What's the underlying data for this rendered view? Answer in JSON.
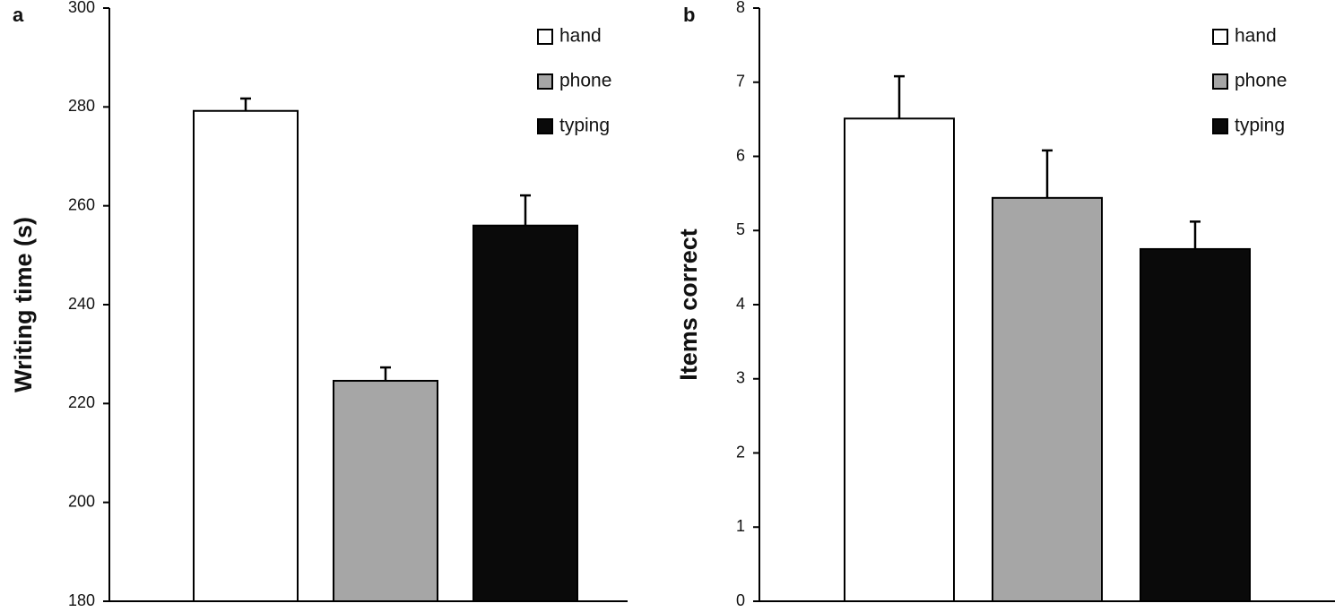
{
  "chart_data": [
    {
      "type": "bar",
      "panel_label": "a",
      "ylabel": "Writing time (s)",
      "ylim": [
        180,
        300
      ],
      "yticks": [
        180,
        200,
        220,
        240,
        260,
        280,
        300
      ],
      "series": [
        {
          "name": "hand",
          "color": "#ffffff",
          "values": [
            279.2
          ],
          "errors": [
            2.5
          ]
        },
        {
          "name": "phone",
          "color": "#a6a6a6",
          "values": [
            224.6
          ],
          "errors": [
            2.7
          ]
        },
        {
          "name": "typing",
          "color": "#0a0a0a",
          "values": [
            256.0
          ],
          "errors": [
            6.1
          ]
        }
      ]
    },
    {
      "type": "bar",
      "panel_label": "b",
      "ylabel": "Items correct",
      "ylim": [
        0,
        8
      ],
      "yticks": [
        0,
        1,
        2,
        3,
        4,
        5,
        6,
        7,
        8
      ],
      "series": [
        {
          "name": "hand",
          "color": "#ffffff",
          "values": [
            6.51
          ],
          "errors": [
            0.57
          ]
        },
        {
          "name": "phone",
          "color": "#a6a6a6",
          "values": [
            5.44
          ],
          "errors": [
            0.64
          ]
        },
        {
          "name": "typing",
          "color": "#0a0a0a",
          "values": [
            4.75
          ],
          "errors": [
            0.37
          ]
        }
      ]
    }
  ]
}
